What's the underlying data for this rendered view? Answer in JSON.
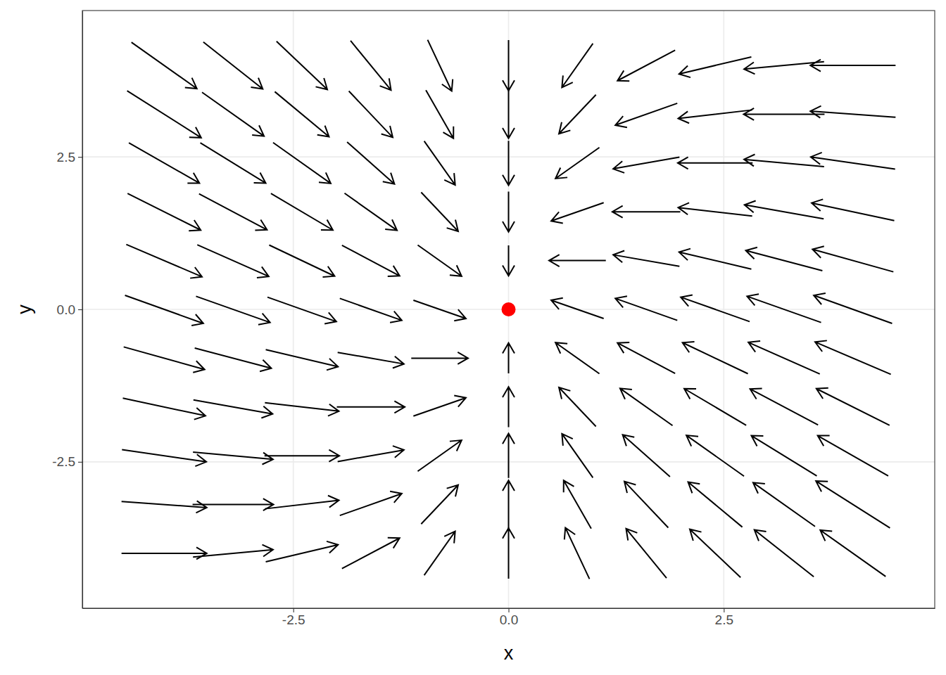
{
  "chart_data": {
    "type": "quiver",
    "x_label": "x",
    "y_label": "y",
    "color": "black",
    "grid": true,
    "xlim": [
      -4.95,
      4.95
    ],
    "ylim": [
      -4.9,
      4.9
    ],
    "xticks": [
      -2.5,
      {
        "value": 0,
        "label": "0.0"
      },
      2.5
    ],
    "yticks": [
      -2.5,
      {
        "value": 0,
        "label": "0.0"
      },
      2.5
    ],
    "x": [
      -4,
      -3.2,
      -2.4,
      -1.6,
      -0.8,
      0,
      0.8,
      1.6,
      2.4,
      3.2,
      4,
      -4,
      -3.2,
      -2.4,
      -1.6,
      -0.8,
      0,
      0.8,
      1.6,
      2.4,
      3.2,
      4,
      -4,
      -3.2,
      -2.4,
      -1.6,
      -0.8,
      0,
      0.8,
      1.6,
      2.4,
      3.2,
      4,
      -4,
      -3.2,
      -2.4,
      -1.6,
      -0.8,
      0,
      0.8,
      1.6,
      2.4,
      3.2,
      4,
      -4,
      -3.2,
      -2.4,
      -1.6,
      -0.8,
      0,
      0.8,
      1.6,
      2.4,
      3.2,
      4,
      -4,
      -3.2,
      -2.4,
      -1.6,
      -0.8,
      0,
      0.8,
      1.6,
      2.4,
      3.2,
      4,
      -4,
      -3.2,
      -2.4,
      -1.6,
      -0.8,
      0,
      0.8,
      1.6,
      2.4,
      3.2,
      4,
      -4,
      -3.2,
      -2.4,
      -1.6,
      -0.8,
      0,
      0.8,
      1.6,
      2.4,
      3.2,
      4,
      -4,
      -3.2,
      -2.4,
      -1.6,
      -0.8,
      0,
      0.8,
      1.6,
      2.4,
      3.2,
      4,
      -4,
      -3.2,
      -2.4,
      -1.6,
      -0.8,
      0,
      0.8,
      1.6,
      2.4,
      3.2,
      4,
      -4,
      -3.2,
      -2.4,
      -1.6,
      -0.8,
      0,
      0.8,
      1.6,
      2.4,
      3.2,
      4
    ],
    "y": [
      4,
      4,
      4,
      4,
      4,
      4,
      4,
      4,
      4,
      4,
      4,
      3.2,
      3.2,
      3.2,
      3.2,
      3.2,
      3.2,
      3.2,
      3.2,
      3.2,
      3.2,
      3.2,
      2.4,
      2.4,
      2.4,
      2.4,
      2.4,
      2.4,
      2.4,
      2.4,
      2.4,
      2.4,
      2.4,
      1.6,
      1.6,
      1.6,
      1.6,
      1.6,
      1.6,
      1.6,
      1.6,
      1.6,
      1.6,
      1.6,
      0.8,
      0.8,
      0.8,
      0.8,
      0.8,
      0.8,
      0.8,
      0.8,
      0.8,
      0.8,
      0.8,
      0,
      0,
      0,
      0,
      0,
      0,
      0,
      0,
      0,
      0,
      0,
      -0.8,
      -0.8,
      -0.8,
      -0.8,
      -0.8,
      -0.8,
      -0.8,
      -0.8,
      -0.8,
      -0.8,
      -0.8,
      -1.6,
      -1.6,
      -1.6,
      -1.6,
      -1.6,
      -1.6,
      -1.6,
      -1.6,
      -1.6,
      -1.6,
      -1.6,
      -2.4,
      -2.4,
      -2.4,
      -2.4,
      -2.4,
      -2.4,
      -2.4,
      -2.4,
      -2.4,
      -2.4,
      -2.4,
      -3.2,
      -3.2,
      -3.2,
      -3.2,
      -3.2,
      -3.2,
      -3.2,
      -3.2,
      -3.2,
      -3.2,
      -3.2,
      -4,
      -4,
      -4,
      -4,
      -4,
      -4,
      -4,
      -4,
      -4,
      -4,
      -4
    ],
    "dx": [
      0.76,
      0.69,
      0.59,
      0.47,
      0.28,
      0,
      -0.36,
      -0.67,
      -0.84,
      -0.93,
      -0.99,
      0.86,
      0.72,
      0.63,
      0.51,
      0.32,
      0,
      -0.43,
      -0.72,
      -0.86,
      -0.94,
      -0.99,
      0.82,
      0.76,
      0.67,
      0.55,
      0.36,
      0,
      -0.51,
      -0.77,
      -0.87,
      -0.93,
      -0.98,
      0.85,
      0.79,
      0.72,
      0.61,
      0.43,
      0,
      -0.61,
      -0.79,
      -0.86,
      -0.92,
      -0.96,
      0.88,
      0.83,
      0.76,
      0.67,
      0.51,
      0,
      -0.66,
      -0.77,
      -0.84,
      -0.89,
      -0.94,
      0.91,
      0.86,
      0.8,
      0.72,
      0.61,
      0,
      -0.61,
      -0.72,
      -0.8,
      -0.86,
      -0.91,
      0.94,
      0.89,
      0.84,
      0.77,
      0.66,
      0,
      -0.51,
      -0.67,
      -0.76,
      -0.83,
      -0.88,
      0.96,
      0.92,
      0.86,
      0.79,
      0.61,
      0,
      -0.43,
      -0.61,
      -0.72,
      -0.79,
      -0.85,
      0.98,
      0.93,
      0.87,
      0.77,
      0.51,
      0,
      -0.36,
      -0.55,
      -0.67,
      -0.76,
      -0.82,
      0.99,
      0.94,
      0.86,
      0.72,
      0.43,
      0,
      -0.32,
      -0.51,
      -0.63,
      -0.72,
      -0.86,
      0.99,
      0.93,
      0.84,
      0.67,
      0.36,
      0,
      -0.28,
      -0.47,
      -0.59,
      -0.69,
      -0.76
    ],
    "dy": [
      -0.76,
      -0.77,
      -0.79,
      -0.81,
      -0.84,
      -0.83,
      -0.72,
      -0.5,
      -0.28,
      -0.12,
      0,
      -0.77,
      -0.72,
      -0.74,
      -0.76,
      -0.79,
      -0.79,
      -0.64,
      -0.36,
      -0.14,
      0,
      0.1,
      -0.66,
      -0.66,
      -0.67,
      -0.69,
      -0.72,
      -0.73,
      -0.51,
      -0.19,
      0,
      0.12,
      0.2,
      -0.6,
      -0.59,
      -0.6,
      -0.61,
      -0.64,
      -0.66,
      -0.3,
      0,
      0.14,
      0.23,
      0.29,
      -0.53,
      -0.52,
      -0.51,
      -0.5,
      -0.51,
      -0.5,
      0,
      0.19,
      0.28,
      0.33,
      0.37,
      -0.46,
      -0.43,
      -0.4,
      -0.36,
      -0.3,
      0,
      0.3,
      0.36,
      0.4,
      0.43,
      0.46,
      -0.37,
      -0.33,
      -0.28,
      -0.19,
      0,
      0.5,
      0.51,
      0.5,
      0.51,
      0.52,
      0.53,
      -0.29,
      -0.23,
      -0.14,
      0,
      0.3,
      0.66,
      0.64,
      0.61,
      0.6,
      0.59,
      0.6,
      -0.2,
      -0.12,
      0,
      0.19,
      0.51,
      0.73,
      0.72,
      0.69,
      0.67,
      0.66,
      0.66,
      -0.1,
      0,
      0.14,
      0.36,
      0.64,
      0.79,
      0.79,
      0.76,
      0.74,
      0.72,
      0.77,
      0,
      0.12,
      0.28,
      0.5,
      0.72,
      0.83,
      0.84,
      0.81,
      0.79,
      0.77,
      0.76
    ],
    "point": {
      "x": 0,
      "y": 0,
      "color": "red"
    }
  }
}
